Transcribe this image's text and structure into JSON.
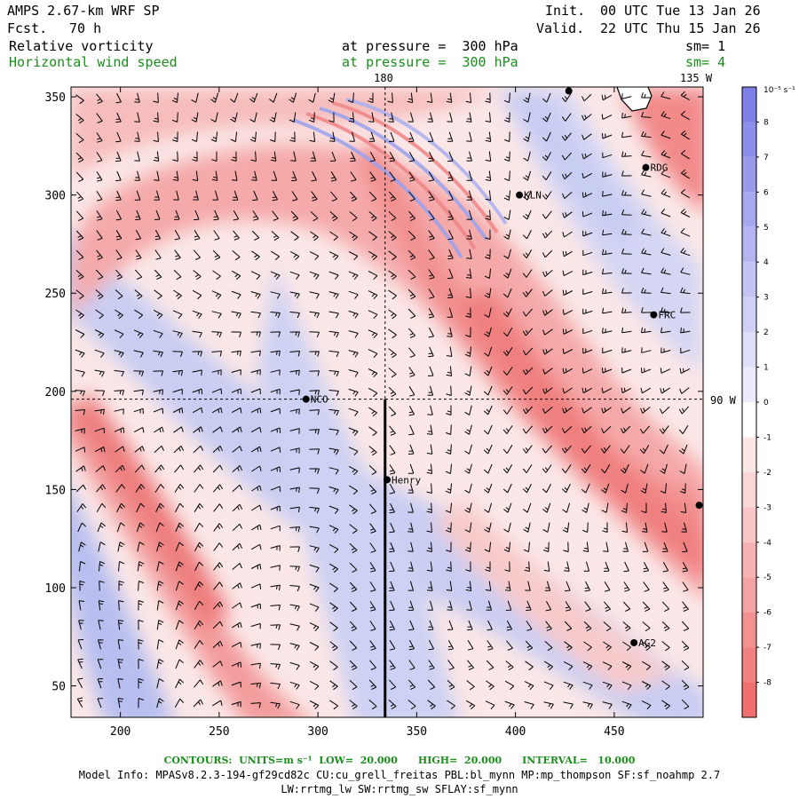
{
  "header": {
    "model_name": "AMPS 2.67-km WRF SP",
    "fcst_label": "Fcst.",
    "fcst_value": "70 h",
    "init_label": "Init.",
    "init_value": "00 UTC Tue 13 Jan 26",
    "valid_label": "Valid.",
    "valid_value": "22 UTC Thu 15 Jan 26",
    "field1_name": "Relative vorticity",
    "field1_level": "at pressure =  300 hPa",
    "field1_sm": "sm= 1",
    "field2_name": "Horizontal wind speed",
    "field2_level": "at pressure =  300 hPa",
    "field2_sm": "sm= 4"
  },
  "map_labels": {
    "top_meridian": "180",
    "top_right_meridian": "135 W",
    "right_meridian": "90 W"
  },
  "stations": [
    {
      "id": "NCO",
      "x": 294,
      "y": 196
    },
    {
      "id": "Henry",
      "x": 335,
      "y": 155
    },
    {
      "id": "KLN",
      "x": 402,
      "y": 300
    },
    {
      "id": "RDG",
      "x": 466,
      "y": 314
    },
    {
      "id": "FRC",
      "x": 470,
      "y": 239
    },
    {
      "id": "AG2",
      "x": 460,
      "y": 72
    },
    {
      "id": "",
      "x": 427,
      "y": 353
    },
    {
      "id": "",
      "x": 493,
      "y": 142
    }
  ],
  "axes": {
    "x_ticks": [
      200,
      250,
      300,
      350,
      400,
      450
    ],
    "y_ticks": [
      50,
      100,
      150,
      200,
      250,
      300,
      350
    ],
    "x_range": [
      175,
      495
    ],
    "y_range": [
      34,
      355
    ],
    "crosshair": {
      "x": 334,
      "y": 196
    },
    "cross_section_line": {
      "x": 334,
      "y_from": 34,
      "y_to": 196
    }
  },
  "colorbar": {
    "unit": "10⁻⁵ s⁻¹",
    "ticks": [
      "8",
      "7",
      "6",
      "5",
      "4",
      "3",
      "2",
      "1",
      "0",
      "-1",
      "-2",
      "-3",
      "-4",
      "-5",
      "-6",
      "-7",
      "-8"
    ],
    "positive_color": "#7f7fe8",
    "negative_color": "#ef6f6f"
  },
  "footer": {
    "contours": "CONTOURS:  UNITS=m s⁻¹  LOW=  20.000      HIGH=  20.000      INTERVAL=   10.000",
    "model_info_1": "Model Info: MPASv8.2.3-194-gf29cd82c CU:cu_grell_freitas PBL:bl_mynn MP:mp_thompson SF:sf_noahmp 2.7",
    "model_info_2": "LW:rrtmg_lw SW:rrtmg_sw SFLAY:sf_mynn"
  }
}
